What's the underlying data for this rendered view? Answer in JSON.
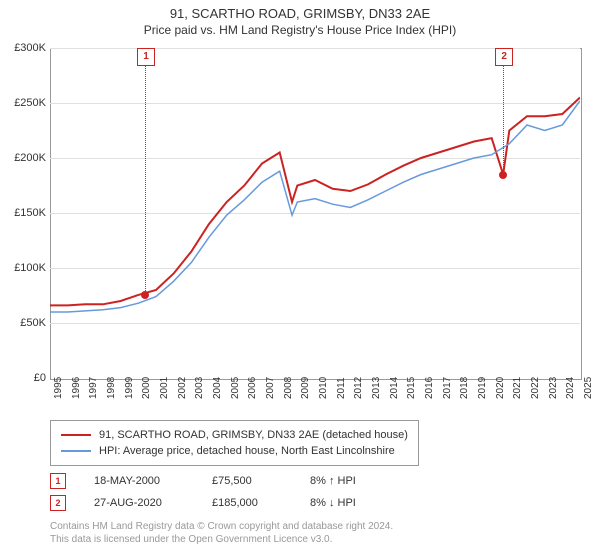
{
  "title": "91, SCARTHO ROAD, GRIMSBY, DN33 2AE",
  "subtitle": "Price paid vs. HM Land Registry's House Price Index (HPI)",
  "chart": {
    "type": "line",
    "background_color": "#ffffff",
    "grid_color": "#e0e0e0",
    "border_color": "#999999",
    "ylim": [
      0,
      300000
    ],
    "ytick_step": 50000,
    "yticks": [
      "£0",
      "£50K",
      "£100K",
      "£150K",
      "£200K",
      "£250K",
      "£300K"
    ],
    "xstart_year": 1995,
    "xend_year": 2025,
    "xticks": [
      "1995",
      "1996",
      "1997",
      "1998",
      "1999",
      "2000",
      "2001",
      "2002",
      "2003",
      "2004",
      "2005",
      "2006",
      "2007",
      "2008",
      "2009",
      "2010",
      "2011",
      "2012",
      "2013",
      "2014",
      "2015",
      "2016",
      "2017",
      "2018",
      "2019",
      "2020",
      "2021",
      "2022",
      "2023",
      "2024",
      "2025"
    ],
    "series": [
      {
        "name": "price_paid",
        "color": "#cc2222",
        "line_width": 2,
        "values": [
          [
            1995,
            66000
          ],
          [
            1996,
            66000
          ],
          [
            1997,
            67000
          ],
          [
            1998,
            67000
          ],
          [
            1999,
            70000
          ],
          [
            2000,
            75500
          ],
          [
            2001,
            80000
          ],
          [
            2002,
            95000
          ],
          [
            2003,
            115000
          ],
          [
            2004,
            140000
          ],
          [
            2005,
            160000
          ],
          [
            2006,
            175000
          ],
          [
            2007,
            195000
          ],
          [
            2008,
            205000
          ],
          [
            2008.7,
            160000
          ],
          [
            2009,
            175000
          ],
          [
            2010,
            180000
          ],
          [
            2011,
            172000
          ],
          [
            2012,
            170000
          ],
          [
            2013,
            176000
          ],
          [
            2014,
            185000
          ],
          [
            2015,
            193000
          ],
          [
            2016,
            200000
          ],
          [
            2017,
            205000
          ],
          [
            2018,
            210000
          ],
          [
            2019,
            215000
          ],
          [
            2020,
            218000
          ],
          [
            2020.65,
            185000
          ],
          [
            2021,
            225000
          ],
          [
            2022,
            238000
          ],
          [
            2023,
            238000
          ],
          [
            2024,
            240000
          ],
          [
            2025,
            255000
          ]
        ]
      },
      {
        "name": "hpi",
        "color": "#6699dd",
        "line_width": 1.5,
        "values": [
          [
            1995,
            60000
          ],
          [
            1996,
            60000
          ],
          [
            1997,
            61000
          ],
          [
            1998,
            62000
          ],
          [
            1999,
            64000
          ],
          [
            2000,
            68000
          ],
          [
            2001,
            74000
          ],
          [
            2002,
            88000
          ],
          [
            2003,
            105000
          ],
          [
            2004,
            128000
          ],
          [
            2005,
            148000
          ],
          [
            2006,
            162000
          ],
          [
            2007,
            178000
          ],
          [
            2008,
            188000
          ],
          [
            2008.7,
            148000
          ],
          [
            2009,
            160000
          ],
          [
            2010,
            163000
          ],
          [
            2011,
            158000
          ],
          [
            2012,
            155000
          ],
          [
            2013,
            162000
          ],
          [
            2014,
            170000
          ],
          [
            2015,
            178000
          ],
          [
            2016,
            185000
          ],
          [
            2017,
            190000
          ],
          [
            2018,
            195000
          ],
          [
            2019,
            200000
          ],
          [
            2020,
            203000
          ],
          [
            2021,
            213000
          ],
          [
            2022,
            230000
          ],
          [
            2023,
            225000
          ],
          [
            2024,
            230000
          ],
          [
            2025,
            252000
          ]
        ]
      }
    ],
    "markers": [
      {
        "label": "1",
        "year": 2000.38,
        "price": 75500
      },
      {
        "label": "2",
        "year": 2020.65,
        "price": 185000
      }
    ]
  },
  "legend": {
    "items": [
      {
        "color": "#cc2222",
        "label": "91, SCARTHO ROAD, GRIMSBY, DN33 2AE (detached house)"
      },
      {
        "color": "#6699dd",
        "label": "HPI: Average price, detached house, North East Lincolnshire"
      }
    ]
  },
  "transactions": [
    {
      "marker": "1",
      "date": "18-MAY-2000",
      "price": "£75,500",
      "hpi": "8% ↑ HPI"
    },
    {
      "marker": "2",
      "date": "27-AUG-2020",
      "price": "£185,000",
      "hpi": "8% ↓ HPI"
    }
  ],
  "footer": {
    "line1": "Contains HM Land Registry data © Crown copyright and database right 2024.",
    "line2": "This data is licensed under the Open Government Licence v3.0."
  }
}
